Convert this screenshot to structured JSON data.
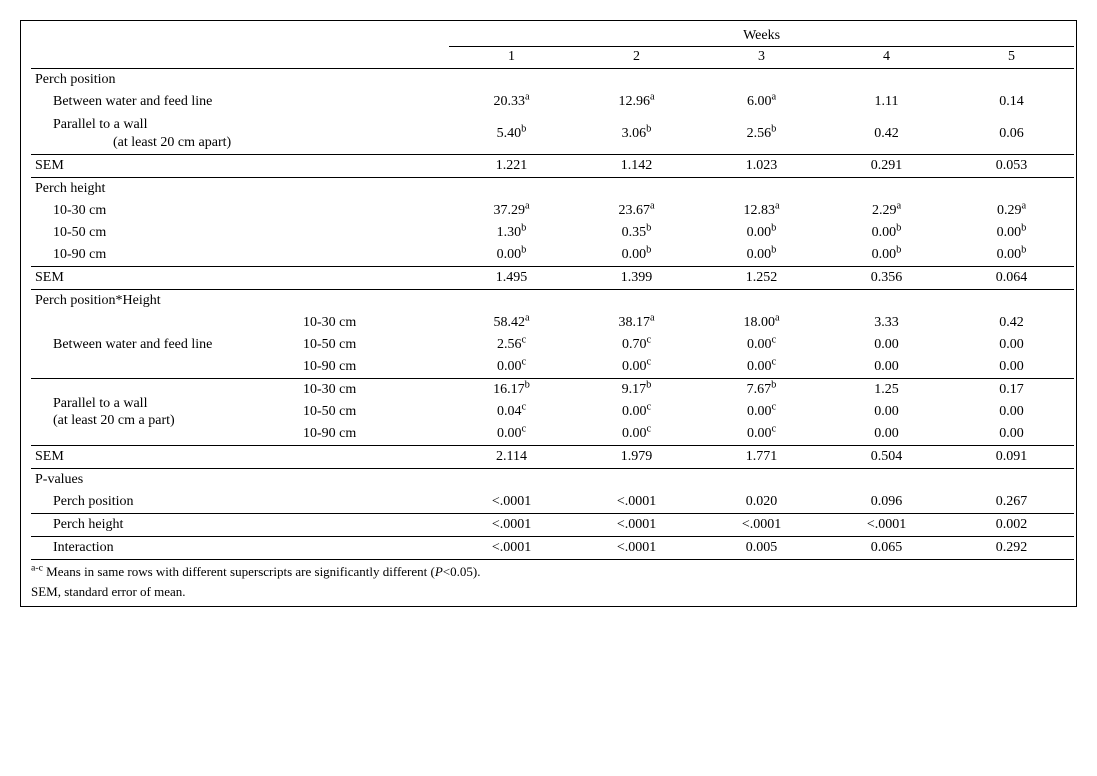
{
  "header": {
    "weeks_label": "Weeks",
    "week_cols": [
      "1",
      "2",
      "3",
      "4",
      "5"
    ]
  },
  "sections": {
    "perch_position": {
      "title": "Perch position",
      "rows": [
        {
          "label": "Between water and feed line",
          "vals": [
            "20.33",
            "12.96",
            "6.00",
            "1.11",
            "0.14"
          ],
          "sups": [
            "a",
            "a",
            "a",
            "",
            ""
          ]
        },
        {
          "label_line1": "Parallel to a wall",
          "label_line2": "(at least 20 cm apart)",
          "vals": [
            "5.40",
            "3.06",
            "2.56",
            "0.42",
            "0.06"
          ],
          "sups": [
            "b",
            "b",
            "b",
            "",
            ""
          ]
        }
      ],
      "sem": {
        "label": "SEM",
        "vals": [
          "1.221",
          "1.142",
          "1.023",
          "0.291",
          "0.053"
        ]
      }
    },
    "perch_height": {
      "title": "Perch height",
      "rows": [
        {
          "label": "10-30 cm",
          "vals": [
            "37.29",
            "23.67",
            "12.83",
            "2.29",
            "0.29"
          ],
          "sups": [
            "a",
            "a",
            "a",
            "a",
            "a"
          ]
        },
        {
          "label": "10-50 cm",
          "vals": [
            "1.30",
            "0.35",
            "0.00",
            "0.00",
            "0.00"
          ],
          "sups": [
            "b",
            "b",
            "b",
            "b",
            "b"
          ]
        },
        {
          "label": "10-90 cm",
          "vals": [
            "0.00",
            "0.00",
            "0.00",
            "0.00",
            "0.00"
          ],
          "sups": [
            "b",
            "b",
            "b",
            "b",
            "b"
          ]
        }
      ],
      "sem": {
        "label": "SEM",
        "vals": [
          "1.495",
          "1.399",
          "1.252",
          "0.356",
          "0.064"
        ]
      }
    },
    "interaction": {
      "title": "Perch position*Height",
      "groups": [
        {
          "label": "Between water and feed line",
          "rows": [
            {
              "sub": "10-30 cm",
              "vals": [
                "58.42",
                "38.17",
                "18.00",
                "3.33",
                "0.42"
              ],
              "sups": [
                "a",
                "a",
                "a",
                "",
                ""
              ]
            },
            {
              "sub": "10-50 cm",
              "vals": [
                "2.56",
                "0.70",
                "0.00",
                "0.00",
                "0.00"
              ],
              "sups": [
                "c",
                "c",
                "c",
                "",
                ""
              ]
            },
            {
              "sub": "10-90 cm",
              "vals": [
                "0.00",
                "0.00",
                "0.00",
                "0.00",
                "0.00"
              ],
              "sups": [
                "c",
                "c",
                "c",
                "",
                ""
              ]
            }
          ]
        },
        {
          "label_line1": "Parallel to a wall",
          "label_line2": "(at least 20 cm a part)",
          "rows": [
            {
              "sub": "10-30 cm",
              "vals": [
                "16.17",
                "9.17",
                "7.67",
                "1.25",
                "0.17"
              ],
              "sups": [
                "b",
                "b",
                "b",
                "",
                ""
              ]
            },
            {
              "sub": "10-50 cm",
              "vals": [
                "0.04",
                "0.00",
                "0.00",
                "0.00",
                "0.00"
              ],
              "sups": [
                "c",
                "c",
                "c",
                "",
                ""
              ]
            },
            {
              "sub": "10-90 cm",
              "vals": [
                "0.00",
                "0.00",
                "0.00",
                "0.00",
                "0.00"
              ],
              "sups": [
                "c",
                "c",
                "c",
                "",
                ""
              ]
            }
          ]
        }
      ],
      "sem": {
        "label": "SEM",
        "vals": [
          "2.114",
          "1.979",
          "1.771",
          "0.504",
          "0.091"
        ]
      }
    },
    "pvalues": {
      "title": "P-values",
      "rows": [
        {
          "label": "Perch position",
          "vals": [
            "<.0001",
            "<.0001",
            "0.020",
            "0.096",
            "0.267"
          ]
        },
        {
          "label": "Perch height",
          "vals": [
            "<.0001",
            "<.0001",
            "<.0001",
            "<.0001",
            "0.002"
          ]
        },
        {
          "label": "Interaction",
          "vals": [
            "<.0001",
            "<.0001",
            "0.005",
            "0.065",
            "0.292"
          ]
        }
      ]
    }
  },
  "footnotes": {
    "line1_sup": "a-c",
    "line1_a": " Means in same rows with different superscripts are significantly different (",
    "line1_p": "P",
    "line1_b": "<0.05).",
    "line2": "SEM, standard error of mean."
  },
  "style": {
    "font_family": "Times New Roman",
    "font_size_pt": 14,
    "border_color": "#000000",
    "bg_color": "#ffffff",
    "text_color": "#000000"
  }
}
